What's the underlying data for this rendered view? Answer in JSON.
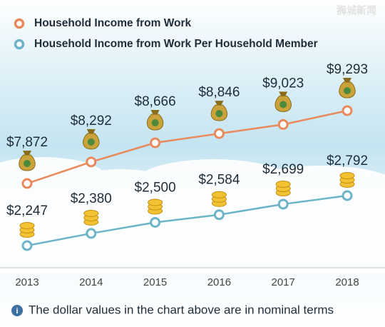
{
  "chart_data": {
    "type": "line",
    "watermark": "狮城新闻",
    "categories": [
      "2013",
      "2014",
      "2015",
      "2016",
      "2017",
      "2018"
    ],
    "series": [
      {
        "name": "Household Income from Work",
        "color": "#e98a5c",
        "values": [
          7872,
          8292,
          8666,
          8846,
          9023,
          9293
        ],
        "value_labels": [
          "$7,872",
          "$8,292",
          "$8,666",
          "$8,846",
          "$9,023",
          "$9,293"
        ]
      },
      {
        "name": "Household Income from Work Per Household Member",
        "color": "#6db4c8",
        "values": [
          2247,
          2380,
          2500,
          2584,
          2699,
          2792
        ],
        "value_labels": [
          "$2,247",
          "$2,380",
          "$2,500",
          "$2,584",
          "$2,699",
          "$2,792"
        ]
      }
    ],
    "note": "The dollar values in the chart above are in nominal terms"
  }
}
